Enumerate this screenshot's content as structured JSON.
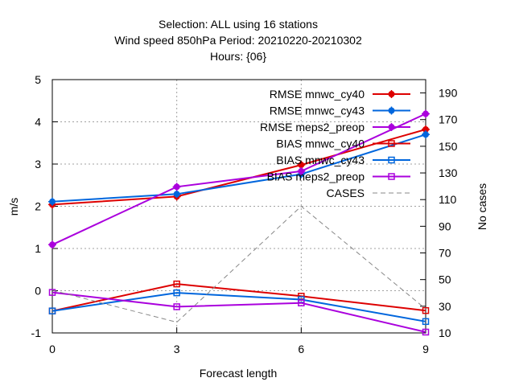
{
  "chart_data": {
    "type": "line",
    "title_lines": [
      "Selection: ALL using    16 stations",
      "Wind speed 850hPa   Period: 20210220-20210302",
      "Hours: {06}"
    ],
    "xlabel": "Forecast length",
    "ylabel": "m/s",
    "y2label": "No cases",
    "x": [
      0,
      3,
      6,
      9
    ],
    "xlim": [
      0,
      9
    ],
    "xticks": [
      "0",
      "3",
      "6",
      "9"
    ],
    "ylim": [
      -1,
      5
    ],
    "yticks": [
      "-1",
      "0",
      "1",
      "2",
      "3",
      "4",
      "5"
    ],
    "y2lim": [
      10,
      200
    ],
    "y2ticks": [
      "10",
      "30",
      "50",
      "70",
      "90",
      "110",
      "130",
      "150",
      "170",
      "190"
    ],
    "grid": true,
    "legend_position": "top-right",
    "series": [
      {
        "name": "RMSE mnwc_cy40",
        "color": "#dd0000",
        "marker": "filled-circle",
        "axis": "y",
        "dash": "solid",
        "values": [
          2.04,
          2.23,
          2.98,
          3.82
        ]
      },
      {
        "name": "RMSE mnwc_cy43",
        "color": "#0066dd",
        "marker": "filled-circle",
        "axis": "y",
        "dash": "solid",
        "values": [
          2.11,
          2.29,
          2.76,
          3.7
        ]
      },
      {
        "name": "RMSE meps2_preop",
        "color": "#aa00dd",
        "marker": "filled-circle",
        "axis": "y",
        "dash": "solid",
        "values": [
          1.09,
          2.46,
          2.83,
          4.19
        ]
      },
      {
        "name": "BIAS mnwc_cy40",
        "color": "#dd0000",
        "marker": "open-square",
        "axis": "y",
        "dash": "solid",
        "values": [
          -0.48,
          0.16,
          -0.13,
          -0.47
        ]
      },
      {
        "name": "BIAS mnwc_cy43",
        "color": "#0066dd",
        "marker": "open-square",
        "axis": "y",
        "dash": "solid",
        "values": [
          -0.48,
          -0.05,
          -0.21,
          -0.73
        ]
      },
      {
        "name": "BIAS meps2_preop",
        "color": "#aa00dd",
        "marker": "open-square",
        "axis": "y",
        "dash": "solid",
        "values": [
          -0.04,
          -0.38,
          -0.29,
          -0.98
        ]
      },
      {
        "name": "CASES",
        "color": "#888888",
        "marker": "none",
        "axis": "y2",
        "dash": "dashed",
        "values": [
          42,
          18,
          105,
          28
        ]
      }
    ]
  }
}
